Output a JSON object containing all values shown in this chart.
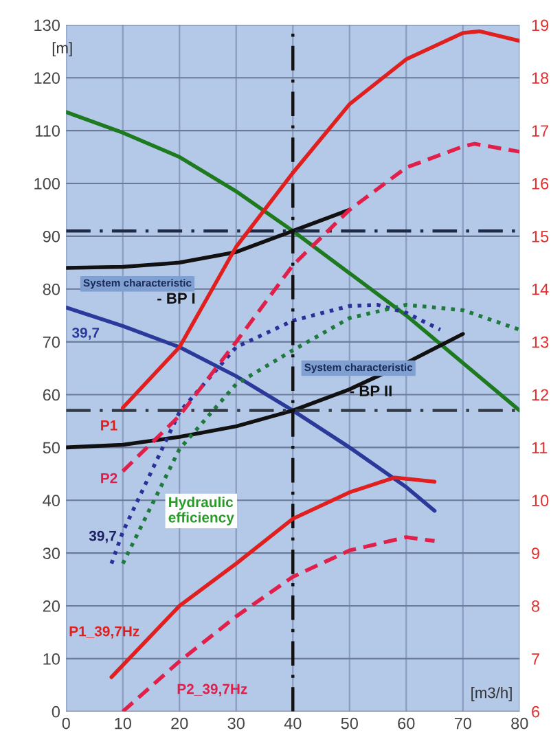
{
  "chart_data": {
    "type": "line",
    "xlabel": "[m3/h]",
    "ylabel": "[m]",
    "xlim": [
      0,
      80
    ],
    "xticks": [
      0,
      10,
      20,
      30,
      40,
      50,
      60,
      70,
      80
    ],
    "ylim": [
      0,
      130
    ],
    "yticks": [
      0,
      10,
      20,
      30,
      40,
      50,
      60,
      70,
      80,
      90,
      100,
      110,
      120,
      130
    ],
    "y2lim": [
      6,
      19
    ],
    "y2ticks": [
      6,
      7,
      8,
      9,
      10,
      11,
      12,
      13,
      14,
      15,
      16,
      17,
      18,
      19
    ],
    "grid": true,
    "series": [
      {
        "color": "#1e7a1e",
        "line_style": "solid",
        "x": [
          0,
          10,
          20,
          30,
          40,
          50,
          60,
          70,
          80
        ],
        "values": [
          113.5,
          109.6,
          105,
          98.5,
          91,
          83,
          75,
          66,
          57
        ]
      },
      {
        "name": "39,7",
        "color": "#2b3a9a",
        "line_style": "solid",
        "x": [
          0,
          10,
          20,
          30,
          40,
          50,
          60,
          65
        ],
        "values": [
          76.5,
          73,
          69,
          63.5,
          57,
          50,
          42.5,
          38
        ]
      },
      {
        "color": "#111111",
        "line_style": "solid",
        "x": [
          0,
          10,
          20,
          30,
          40,
          50
        ],
        "values": [
          84,
          84.2,
          85,
          87,
          91,
          95
        ]
      },
      {
        "color": "#111111",
        "line_style": "solid",
        "x": [
          0,
          10,
          20,
          30,
          40,
          50,
          60,
          70
        ],
        "values": [
          50,
          50.5,
          52,
          54,
          57,
          61,
          66,
          71.5
        ]
      },
      {
        "name": "39,7",
        "color": "#2b2f9a",
        "line_style": "dotted",
        "x": [
          8,
          10,
          20,
          30,
          40,
          50,
          55,
          60,
          66
        ],
        "values": [
          28,
          34,
          56.7,
          69,
          74,
          76.8,
          77,
          75.5,
          72.3
        ]
      },
      {
        "color": "#1e7a3a",
        "line_style": "dotted",
        "x": [
          10,
          20,
          30,
          40,
          50,
          60,
          70,
          80
        ],
        "values": [
          28,
          49.7,
          62,
          68.4,
          74.5,
          77,
          76,
          72.3
        ]
      },
      {
        "name": "P1",
        "color": "#e0201e",
        "line_style": "solid",
        "axis": "y2",
        "x": [
          10,
          20,
          30,
          40,
          50,
          60,
          70,
          73,
          80
        ],
        "values": [
          11.75,
          12.9,
          14.8,
          16.2,
          17.5,
          18.35,
          18.85,
          18.88,
          18.7
        ]
      },
      {
        "name": "P2",
        "color": "#e0204a",
        "line_style": "dashed",
        "axis": "y2",
        "x": [
          10,
          20,
          30,
          40,
          50,
          60,
          70,
          72,
          80
        ],
        "values": [
          10.55,
          11.6,
          13.0,
          14.45,
          15.5,
          16.3,
          16.7,
          16.75,
          16.6
        ]
      },
      {
        "name": "P1_39,7Hz",
        "color": "#e0201e",
        "line_style": "solid",
        "axis": "y2",
        "x": [
          8,
          20,
          30,
          40,
          50,
          58,
          65
        ],
        "values": [
          6.65,
          8.0,
          8.8,
          9.65,
          10.15,
          10.43,
          10.35
        ]
      },
      {
        "name": "P2_39,7Hz",
        "color": "#e0204a",
        "line_style": "dashed",
        "axis": "y2",
        "x": [
          10,
          20,
          30,
          40,
          50,
          60,
          65
        ],
        "values": [
          6.0,
          6.95,
          7.8,
          8.55,
          9.05,
          9.3,
          9.23
        ]
      }
    ],
    "ref_lines": [
      {
        "axis": "y",
        "value": 91,
        "color": "#1f2a44",
        "line_style": "dashdot"
      },
      {
        "axis": "y",
        "value": 57,
        "color": "#333a44",
        "line_style": "dashdot"
      },
      {
        "axis": "x",
        "value": 40,
        "color": "#111111",
        "line_style": "dashdot"
      }
    ],
    "annotations": [
      "System characteristic",
      "- BP I",
      "Hydraulic\nefficiency",
      "System characteristic",
      "- BP II"
    ]
  }
}
